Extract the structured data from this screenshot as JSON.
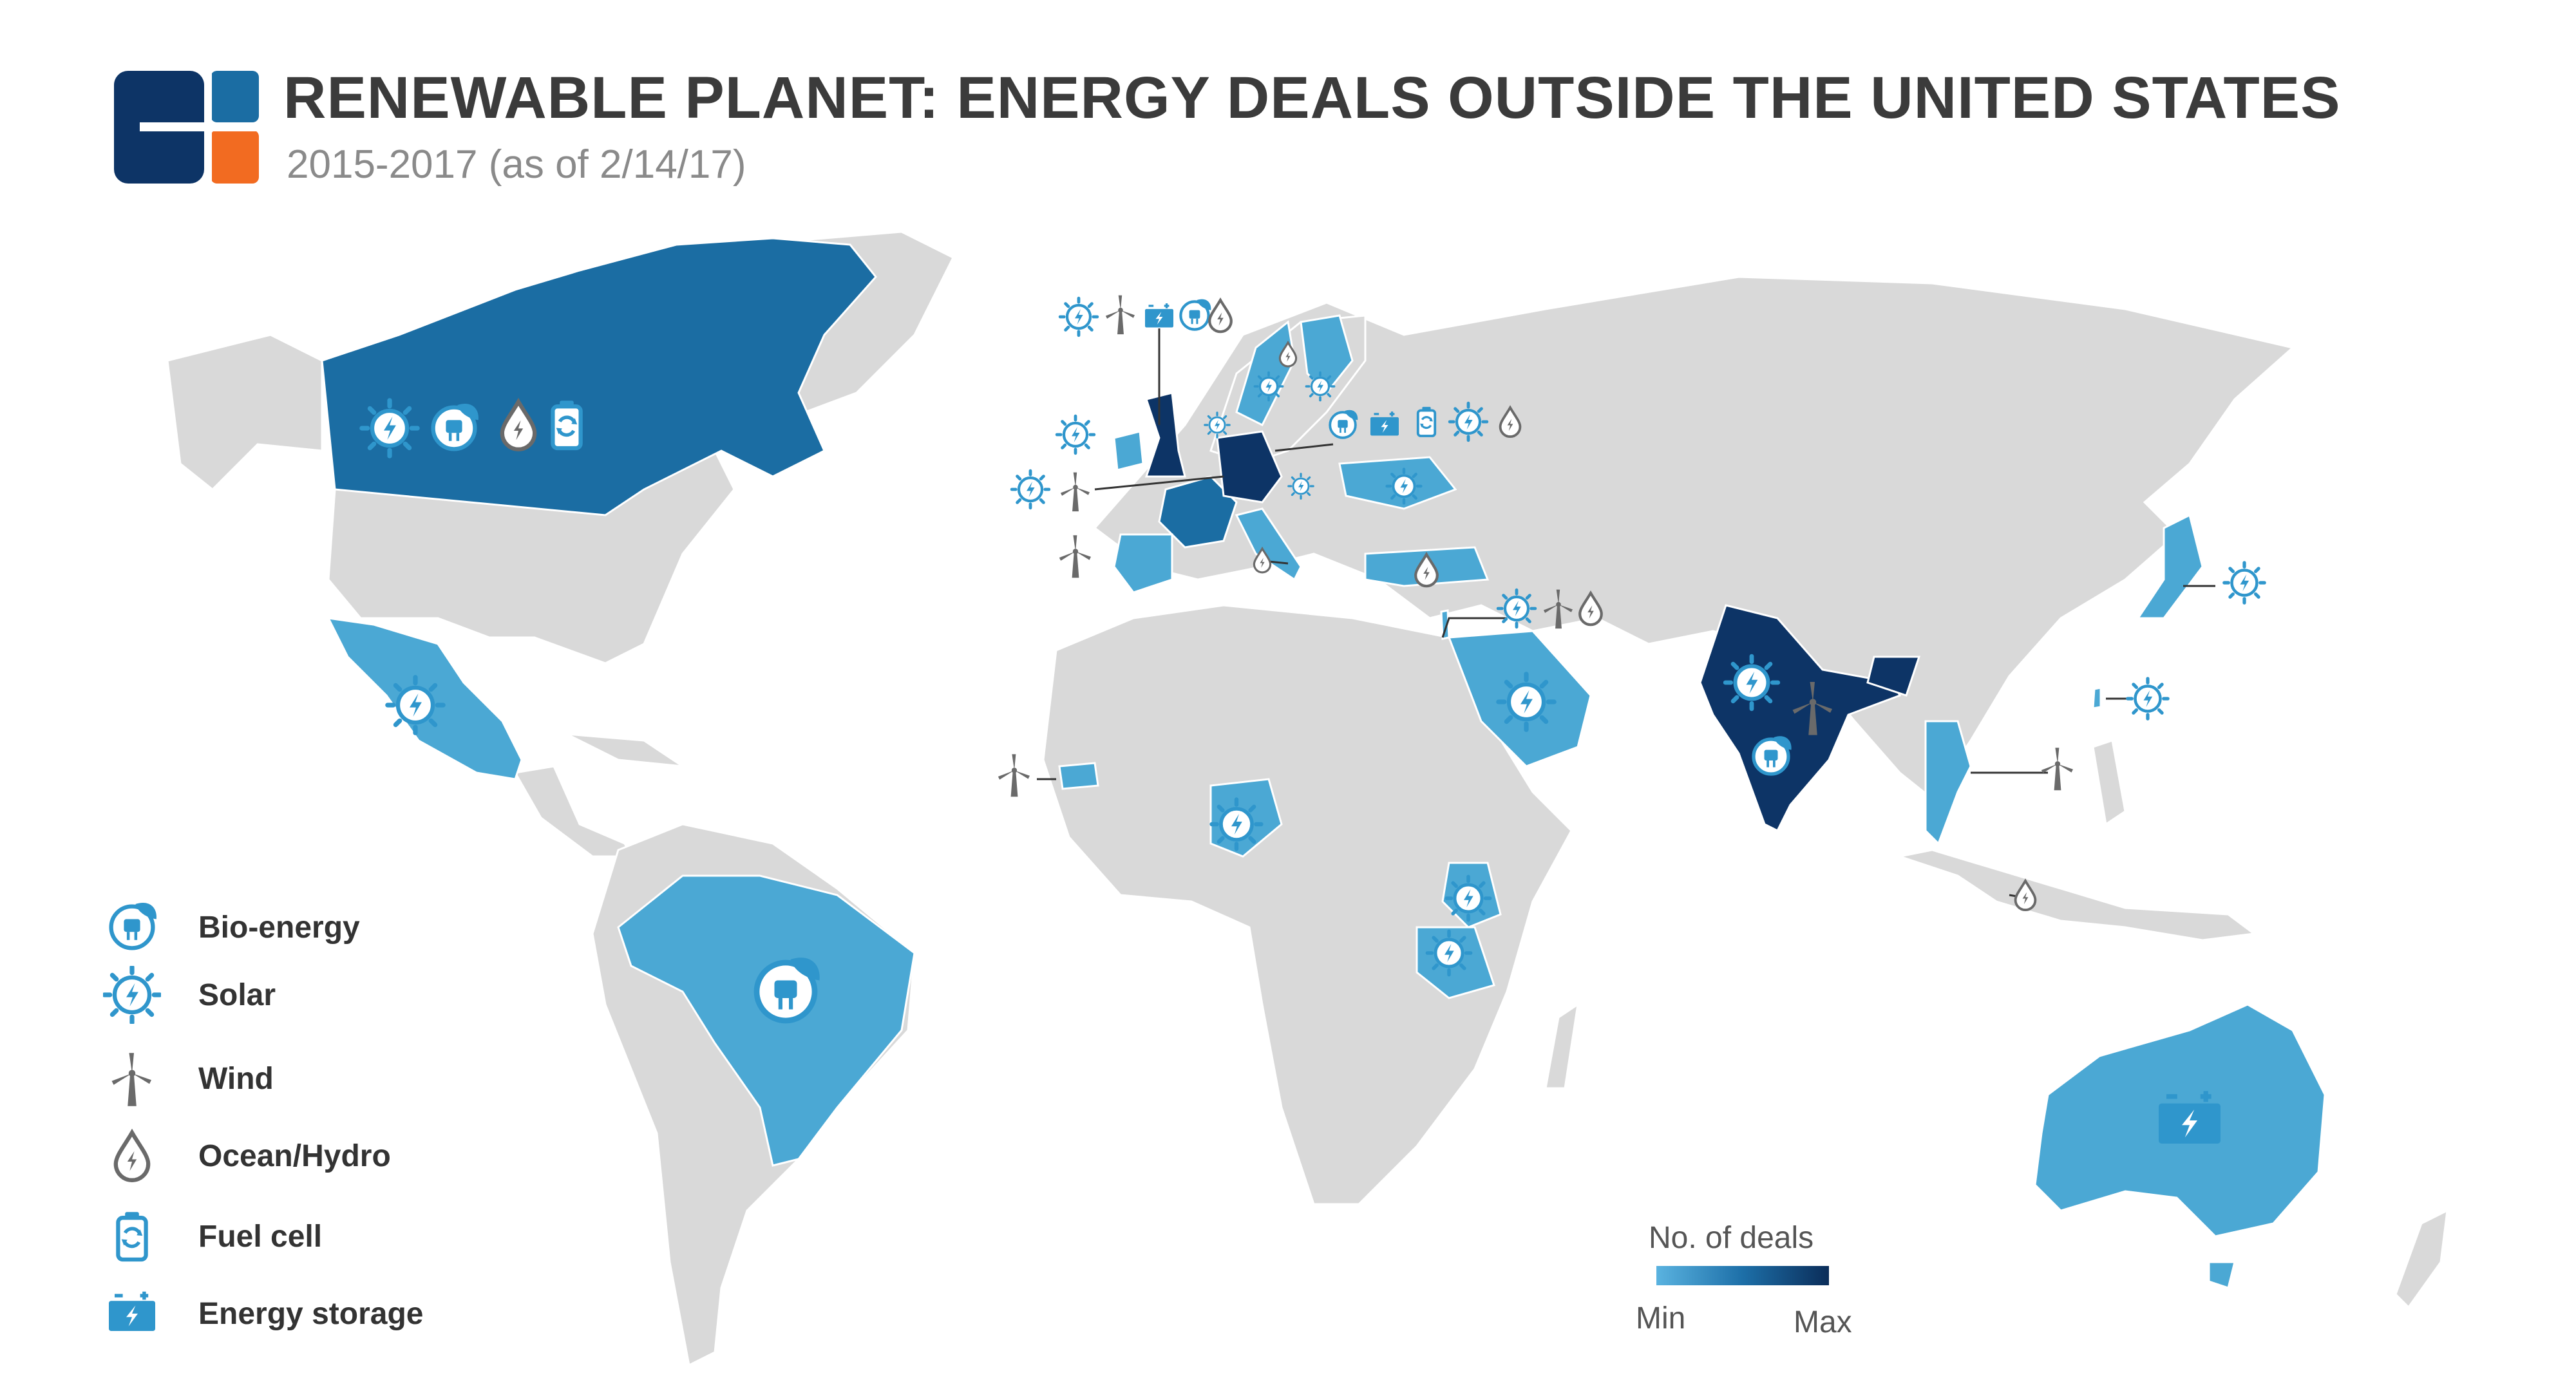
{
  "header": {
    "title": "RENEWABLE PLANET: ENERGY DEALS OUTSIDE THE UNITED STATES",
    "subtitle": "2015-2017 (as of 2/14/17)"
  },
  "colors": {
    "land": "#d9d9d9",
    "border": "#ffffff",
    "low": "#4ba8d4",
    "mid": "#1b6da3",
    "high": "#0d3466",
    "icon_blue": "#2f96cc",
    "icon_gray": "#6a6a6a",
    "logo_navy": "#0d3466",
    "logo_blue": "#1b6da3",
    "logo_orange": "#f26b21"
  },
  "legend": {
    "items": [
      {
        "label": "Bio-energy",
        "icon": "bio-energy-icon"
      },
      {
        "label": "Solar",
        "icon": "solar-icon"
      },
      {
        "label": "Wind",
        "icon": "wind-icon"
      },
      {
        "label": "Ocean/Hydro",
        "icon": "ocean-hydro-icon"
      },
      {
        "label": "Fuel cell",
        "icon": "fuel-cell-icon"
      },
      {
        "label": "Energy storage",
        "icon": "energy-storage-icon"
      }
    ]
  },
  "color_scale": {
    "title": "No. of deals",
    "min_label": "Min",
    "max_label": "Max"
  },
  "countries": [
    {
      "name": "Canada",
      "level": "mid",
      "deals": [
        "solar",
        "bio-energy",
        "ocean-hydro",
        "fuel-cell"
      ]
    },
    {
      "name": "Mexico",
      "level": "low",
      "deals": [
        "solar"
      ]
    },
    {
      "name": "Brazil",
      "level": "low",
      "deals": [
        "bio-energy"
      ]
    },
    {
      "name": "United Kingdom",
      "level": "high",
      "deals": [
        "solar",
        "wind",
        "energy-storage",
        "bio-energy",
        "ocean-hydro"
      ]
    },
    {
      "name": "Ireland",
      "level": "low",
      "deals": [
        "solar"
      ]
    },
    {
      "name": "France",
      "level": "mid",
      "deals": [
        "solar",
        "wind"
      ]
    },
    {
      "name": "Spain",
      "level": "low",
      "deals": [
        "wind"
      ]
    },
    {
      "name": "Germany",
      "level": "high",
      "deals": [
        "bio-energy",
        "energy-storage",
        "fuel-cell",
        "solar",
        "ocean-hydro"
      ]
    },
    {
      "name": "Italy",
      "level": "low",
      "deals": [
        "ocean-hydro"
      ]
    },
    {
      "name": "Sweden",
      "level": "low",
      "deals": [
        "ocean-hydro"
      ]
    },
    {
      "name": "Finland",
      "level": "low",
      "deals": [
        "solar"
      ]
    },
    {
      "name": "Ukraine",
      "level": "low",
      "deals": [
        "solar"
      ]
    },
    {
      "name": "Turkey",
      "level": "low",
      "deals": [
        "ocean-hydro"
      ]
    },
    {
      "name": "Israel",
      "level": "low",
      "deals": [
        "solar",
        "wind",
        "ocean-hydro"
      ]
    },
    {
      "name": "Saudi Arabia",
      "level": "low",
      "deals": [
        "solar"
      ]
    },
    {
      "name": "India",
      "level": "high",
      "deals": [
        "solar",
        "wind",
        "bio-energy"
      ]
    },
    {
      "name": "Thailand",
      "level": "low",
      "deals": [
        "wind"
      ]
    },
    {
      "name": "Malaysia",
      "level": "none",
      "deals": [
        "ocean-hydro"
      ]
    },
    {
      "name": "Japan",
      "level": "low",
      "deals": [
        "solar"
      ]
    },
    {
      "name": "Taiwan",
      "level": "low",
      "deals": [
        "solar"
      ]
    },
    {
      "name": "Senegal",
      "level": "low",
      "deals": [
        "wind"
      ]
    },
    {
      "name": "Nigeria",
      "level": "low",
      "deals": [
        "solar"
      ]
    },
    {
      "name": "Kenya",
      "level": "low",
      "deals": [
        "solar"
      ]
    },
    {
      "name": "Tanzania",
      "level": "low",
      "deals": [
        "solar"
      ]
    },
    {
      "name": "Australia",
      "level": "low",
      "deals": [
        "energy-storage"
      ]
    }
  ]
}
